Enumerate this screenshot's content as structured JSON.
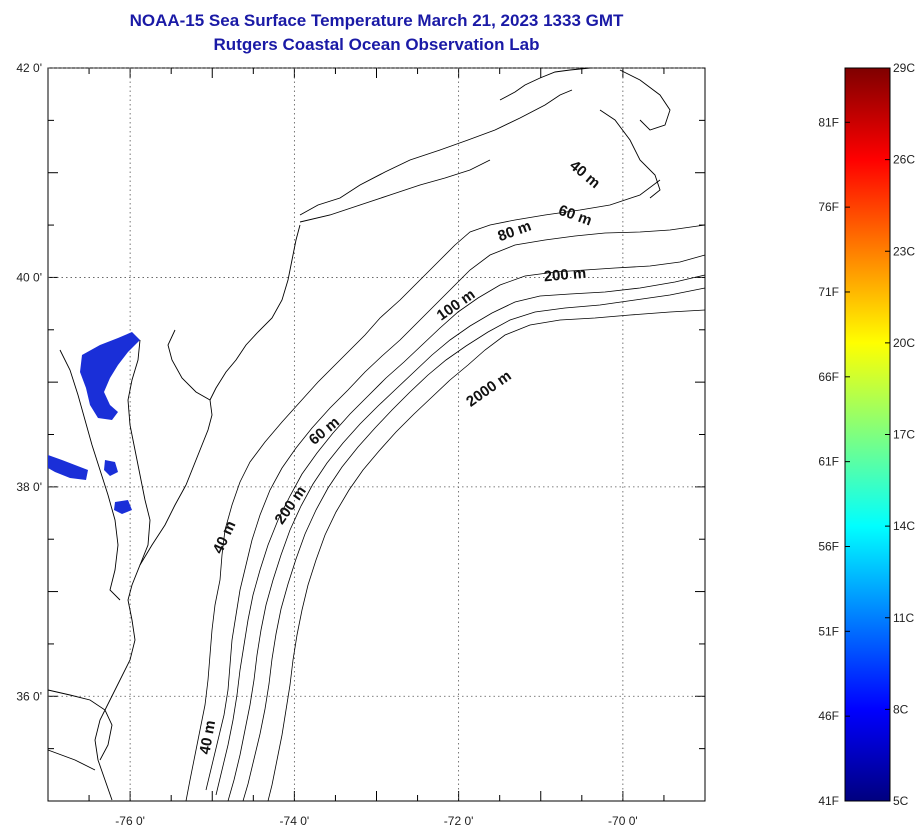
{
  "title_line1": "NOAA-15 Sea Surface Temperature March 21, 2023 1333 GMT",
  "title_line2": "Rutgers Coastal Ocean Observation Lab",
  "map": {
    "lon_range": [
      -77,
      -69
    ],
    "lat_range": [
      35,
      42
    ],
    "lon_ticks": [
      {
        "value": -76,
        "label": "-76 0'"
      },
      {
        "value": -74,
        "label": "-74 0'"
      },
      {
        "value": -72,
        "label": "-72 0'"
      },
      {
        "value": -70,
        "label": "-70 0'"
      }
    ],
    "lat_ticks": [
      {
        "value": 42,
        "label": "42 0'"
      },
      {
        "value": 40,
        "label": "40 0'"
      },
      {
        "value": 38,
        "label": "38 0'"
      },
      {
        "value": 36,
        "label": "36 0'"
      }
    ],
    "isobath_labels": [
      {
        "text": "40 m",
        "lon": -70.5,
        "lat": 40.95,
        "angle": 40
      },
      {
        "text": "60 m",
        "lon": -70.6,
        "lat": 40.55,
        "angle": 20
      },
      {
        "text": "80 m",
        "lon": -71.3,
        "lat": 40.4,
        "angle": -20
      },
      {
        "text": "200 m",
        "lon": -70.7,
        "lat": 39.98,
        "angle": -5
      },
      {
        "text": "100 m",
        "lon": -72.0,
        "lat": 39.7,
        "angle": -35
      },
      {
        "text": "2000 m",
        "lon": -71.6,
        "lat": 38.9,
        "angle": -35
      },
      {
        "text": "60 m",
        "lon": -73.6,
        "lat": 38.5,
        "angle": -40
      },
      {
        "text": "200 m",
        "lon": -74.0,
        "lat": 37.8,
        "angle": -55
      },
      {
        "text": "40 m",
        "lon": -74.8,
        "lat": 37.5,
        "angle": -65
      },
      {
        "text": "40 m",
        "lon": -75.0,
        "lat": 35.6,
        "angle": -80
      }
    ]
  },
  "colorbar": {
    "min_c": 5,
    "max_c": 29,
    "c_labels": [
      "29C",
      "26C",
      "23C",
      "20C",
      "17C",
      "14C",
      "11C",
      "8C",
      "5C"
    ],
    "f_labels": [
      "81F",
      "76F",
      "71F",
      "66F",
      "61F",
      "56F",
      "51F",
      "46F",
      "41F"
    ],
    "colors": [
      "#00007f",
      "#0000ff",
      "#007fff",
      "#00ffff",
      "#7fff7f",
      "#ffff00",
      "#ff7f00",
      "#ff0000",
      "#7f0000"
    ]
  }
}
